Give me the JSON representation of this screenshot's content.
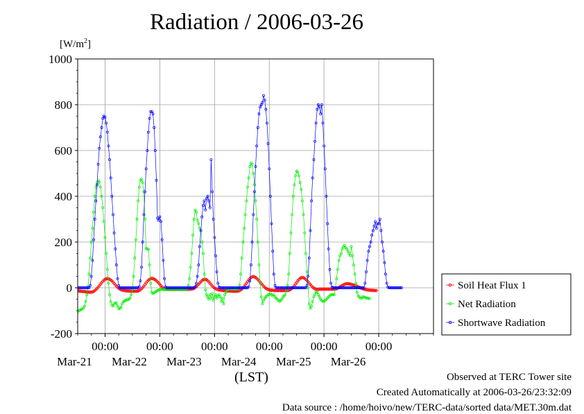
{
  "title": "Radiation / 2006-03-26",
  "unit_label": "[W/m",
  "unit_sup": "2",
  "unit_close": "]",
  "x_axis_label": "(LST)",
  "credits": {
    "site": "Observed at TERC Tower site",
    "created": "Created Automatically at 2006-03-26/23:32:09",
    "source": "Data source : /home/hoivo/new/TERC-data/sorted  data/MET.30m.dat"
  },
  "legend": [
    "Soil Heat Flux 1",
    "Net Radiation",
    "Shortwave Radiation"
  ],
  "colors": {
    "soil": "#ff0000",
    "net": "#00ee00",
    "shortwave": "#0000ff",
    "grid": "#a0a0a0"
  },
  "chart_data": {
    "type": "line",
    "title": "Radiation / 2006-03-26",
    "xlabel": "(LST)",
    "ylabel": "[W/m2]",
    "ylim": [
      -200,
      1000
    ],
    "yticks": [
      -200,
      0,
      200,
      400,
      600,
      800,
      1000
    ],
    "xlim": [
      "2006-03-20 12:00",
      "2006-03-26 24:00"
    ],
    "x_ticks": [
      {
        "time": "2006-03-21 00:00",
        "hour_label": "00:00",
        "date_label": "Mar-21"
      },
      {
        "time": "2006-03-22 00:00",
        "hour_label": "00:00",
        "date_label": "Mar-22"
      },
      {
        "time": "2006-03-23 00:00",
        "hour_label": "00:00",
        "date_label": "Mar-23"
      },
      {
        "time": "2006-03-24 00:00",
        "hour_label": "00:00",
        "date_label": "Mar-24"
      },
      {
        "time": "2006-03-25 00:00",
        "hour_label": "00:00",
        "date_label": "Mar-25"
      },
      {
        "time": "2006-03-26 00:00",
        "hour_label": "00:00",
        "date_label": "Mar-26"
      }
    ],
    "grid": true,
    "legend_position": "right",
    "interval_minutes": 30,
    "start_time": "2006-03-20 12:00",
    "series": [
      {
        "name": "Soil Heat Flux 1",
        "color": "#ff0000",
        "marker": "diamond",
        "values": [
          -13,
          -14,
          -15,
          -15,
          -16,
          -16,
          -17,
          -17,
          -18,
          -18,
          -19,
          -19,
          -19,
          -18,
          -16,
          -12,
          -8,
          -3,
          3,
          9,
          16,
          22,
          28,
          33,
          37,
          39,
          40,
          39,
          37,
          34,
          30,
          25,
          19,
          13,
          7,
          2,
          -2,
          -5,
          -8,
          -10,
          -11,
          -12,
          -13,
          -13,
          -14,
          -14,
          -14,
          -15,
          -15,
          -15,
          -15,
          -15,
          -15,
          -14,
          -12,
          -9,
          -4,
          1,
          7,
          14,
          21,
          28,
          33,
          37,
          40,
          41,
          40,
          38,
          35,
          31,
          26,
          21,
          15,
          9,
          3,
          -1,
          -3,
          -5,
          -6,
          -7,
          -7,
          -7,
          -7,
          -7,
          -7,
          -7,
          -7,
          -7,
          -7,
          -7,
          -7,
          -7,
          -7,
          -7,
          -7,
          -7,
          -7,
          -7,
          -6,
          -6,
          -5,
          -4,
          -2,
          1,
          5,
          10,
          15,
          21,
          26,
          31,
          35,
          37,
          37,
          35,
          31,
          26,
          20,
          14,
          8,
          3,
          -1,
          -4,
          -6,
          -8,
          -9,
          -10,
          -11,
          -12,
          -12,
          -13,
          -13,
          -14,
          -14,
          -14,
          -14,
          -15,
          -15,
          -15,
          -15,
          -15,
          -15,
          -14,
          -12,
          -9,
          -5,
          0,
          6,
          13,
          20,
          27,
          34,
          40,
          45,
          48,
          49,
          48,
          45,
          41,
          36,
          31,
          25,
          19,
          13,
          7,
          2,
          -2,
          -5,
          -7,
          -9,
          -10,
          -11,
          -11,
          -12,
          -12,
          -12,
          -12,
          -12,
          -12,
          -12,
          -12,
          -12,
          -12,
          -12,
          -12,
          -12,
          -11,
          -9,
          -6,
          -2,
          3,
          9,
          16,
          23,
          30,
          36,
          41,
          44,
          45,
          44,
          41,
          37,
          32,
          26,
          20,
          14,
          8,
          3,
          -1,
          -4,
          -6,
          -7,
          -7,
          -6,
          -6,
          -6,
          -6,
          -6,
          -6,
          -6,
          -6,
          -6,
          -6,
          -6,
          -6,
          -6,
          -6,
          -5,
          -4,
          -2,
          1,
          4,
          7,
          10,
          13,
          15,
          17,
          18,
          18,
          17,
          16,
          15,
          13,
          12,
          10,
          8,
          6,
          4,
          2,
          0,
          -2,
          -4,
          -6,
          -7,
          -8,
          -9,
          -10,
          -10,
          -11,
          -11,
          -11,
          -12,
          -12,
          -12
        ]
      },
      {
        "name": "Net Radiation",
        "color": "#00ee00",
        "marker": "circle",
        "values": [
          -105,
          -100,
          -98,
          -95,
          -92,
          -88,
          -80,
          -60,
          -30,
          5,
          60,
          130,
          200,
          260,
          330,
          400,
          440,
          460,
          468,
          462,
          440,
          400,
          350,
          290,
          220,
          150,
          80,
          20,
          -30,
          -60,
          -75,
          -80,
          -70,
          -65,
          -68,
          -80,
          -92,
          -90,
          -85,
          -70,
          -62,
          -58,
          -55,
          -52,
          -52,
          -50,
          -45,
          -30,
          -5,
          50,
          130,
          210,
          300,
          380,
          440,
          470,
          475,
          460,
          420,
          300,
          172,
          170,
          168,
          100,
          20,
          -20,
          -25,
          -22,
          -18,
          -15,
          -12,
          -10,
          -8,
          -8,
          -8,
          -8,
          -8,
          -8,
          -8,
          -8,
          -8,
          -8,
          -8,
          -8,
          -8,
          -8,
          -8,
          -8,
          -8,
          -8,
          -8,
          -8,
          -8,
          -8,
          -8,
          -8,
          -5,
          10,
          40,
          90,
          150,
          230,
          300,
          340,
          330,
          295,
          280,
          260,
          250,
          200,
          150,
          60,
          -10,
          -30,
          -40,
          -50,
          -30,
          -45,
          -25,
          -55,
          -40,
          -30,
          -45,
          -35,
          -30,
          -40,
          -60,
          -45,
          -70,
          -30,
          -20,
          -10,
          -5,
          -5,
          -5,
          -5,
          -5,
          -5,
          -5,
          -5,
          -5,
          -5,
          10,
          60,
          130,
          200,
          260,
          320,
          380,
          440,
          480,
          530,
          545,
          540,
          500,
          450,
          380,
          300,
          200,
          100,
          20,
          -40,
          -70,
          -55,
          -45,
          -40,
          -35,
          -30,
          -30,
          -25,
          -30,
          -35,
          -30,
          -40,
          -45,
          -50,
          -55,
          -60,
          -55,
          -50,
          -40,
          -35,
          -30,
          -10,
          10,
          60,
          150,
          240,
          320,
          400,
          450,
          490,
          510,
          505,
          490,
          460,
          430,
          380,
          320,
          240,
          150,
          70,
          0,
          -70,
          -90,
          -80,
          -60,
          -40,
          -30,
          -20,
          -20,
          -30,
          -40,
          -50,
          -55,
          -60,
          -60,
          -55,
          -50,
          -45,
          -40,
          -35,
          -30,
          -30,
          -30,
          -30,
          0,
          40,
          80,
          120,
          140,
          150,
          170,
          180,
          185,
          175,
          170,
          160,
          150,
          140,
          180,
          140,
          100,
          60,
          20,
          -20,
          -35,
          -40,
          -45,
          -45,
          -40,
          -40,
          -42,
          -44,
          -45,
          -46,
          -47
        ]
      },
      {
        "name": "Shortwave Radiation",
        "color": "#0000ff",
        "marker": "circle",
        "values": [
          0,
          0,
          0,
          0,
          0,
          0,
          0,
          0,
          0,
          0,
          0,
          10,
          50,
          120,
          210,
          300,
          380,
          450,
          540,
          610,
          660,
          700,
          740,
          750,
          745,
          720,
          680,
          620,
          560,
          480,
          400,
          320,
          240,
          170,
          100,
          40,
          10,
          0,
          0,
          0,
          0,
          0,
          0,
          0,
          0,
          0,
          0,
          0,
          0,
          0,
          0,
          0,
          0,
          0,
          5,
          30,
          90,
          200,
          320,
          420,
          520,
          600,
          680,
          740,
          770,
          770,
          760,
          700,
          600,
          470,
          305,
          295,
          310,
          290,
          210,
          120,
          40,
          5,
          0,
          0,
          0,
          0,
          0,
          0,
          0,
          0,
          0,
          0,
          0,
          0,
          0,
          0,
          0,
          0,
          0,
          0,
          0,
          0,
          0,
          0,
          0,
          0,
          0,
          5,
          20,
          50,
          100,
          180,
          250,
          310,
          360,
          380,
          340,
          390,
          400,
          380,
          350,
          560,
          420,
          300,
          220,
          140,
          70,
          20,
          3,
          0,
          0,
          0,
          0,
          0,
          0,
          0,
          0,
          0,
          0,
          0,
          0,
          0,
          0,
          0,
          0,
          0,
          0,
          0,
          0,
          0,
          0,
          0,
          0,
          0,
          5,
          30,
          100,
          200,
          320,
          420,
          530,
          620,
          700,
          760,
          790,
          800,
          810,
          840,
          820,
          780,
          720,
          630,
          520,
          400,
          280,
          160,
          60,
          10,
          0,
          0,
          0,
          0,
          0,
          0,
          0,
          0,
          0,
          0,
          0,
          0,
          0,
          0,
          0,
          0,
          0,
          0,
          0,
          0,
          0,
          0,
          0,
          0,
          0,
          0,
          0,
          10,
          50,
          130,
          250,
          380,
          480,
          560,
          640,
          720,
          780,
          800,
          790,
          760,
          800,
          720,
          620,
          520,
          400,
          280,
          170,
          80,
          20,
          3,
          0,
          0,
          0,
          0,
          0,
          0,
          0,
          0,
          0,
          0,
          0,
          0,
          0,
          0,
          0,
          0,
          0,
          0,
          0,
          0,
          0,
          0,
          0,
          0,
          0,
          0,
          0,
          0,
          20,
          70,
          120,
          160,
          180,
          200,
          230,
          250,
          270,
          290,
          260,
          280,
          280,
          300,
          250,
          200,
          160,
          110,
          60,
          20,
          3,
          0,
          0,
          0,
          0,
          0,
          0,
          0,
          0,
          0,
          0,
          0,
          0
        ]
      }
    ]
  }
}
